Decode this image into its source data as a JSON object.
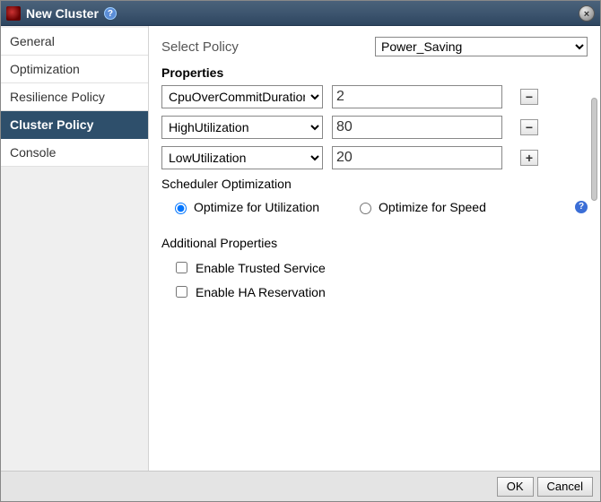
{
  "title": "New Cluster",
  "sidebar": {
    "items": [
      {
        "label": "General",
        "active": false
      },
      {
        "label": "Optimization",
        "active": false
      },
      {
        "label": "Resilience Policy",
        "active": false
      },
      {
        "label": "Cluster Policy",
        "active": true
      },
      {
        "label": "Console",
        "active": false
      }
    ]
  },
  "policy": {
    "label": "Select Policy",
    "selected": "Power_Saving"
  },
  "properties": {
    "header": "Properties",
    "rows": [
      {
        "key": "CpuOverCommitDuration",
        "value": "2",
        "action": "−"
      },
      {
        "key": "HighUtilization",
        "value": "80",
        "action": "−"
      },
      {
        "key": "LowUtilization",
        "value": "20",
        "action": "+"
      }
    ]
  },
  "scheduler": {
    "header": "Scheduler Optimization",
    "options": {
      "utilization": {
        "label": "Optimize for Utilization",
        "checked": true
      },
      "speed": {
        "label": "Optimize for Speed",
        "checked": false
      }
    }
  },
  "additional": {
    "header": "Additional Properties",
    "trusted": {
      "label": "Enable Trusted Service",
      "checked": false
    },
    "ha": {
      "label": "Enable HA Reservation",
      "checked": false
    }
  },
  "buttons": {
    "ok": "OK",
    "cancel": "Cancel"
  },
  "colors": {
    "titlebar_bg": "#3d556f",
    "sidebar_active_bg": "#2e4f6b",
    "sidebar_bg": "#efefef",
    "footer_bg": "#e4e4e4"
  }
}
